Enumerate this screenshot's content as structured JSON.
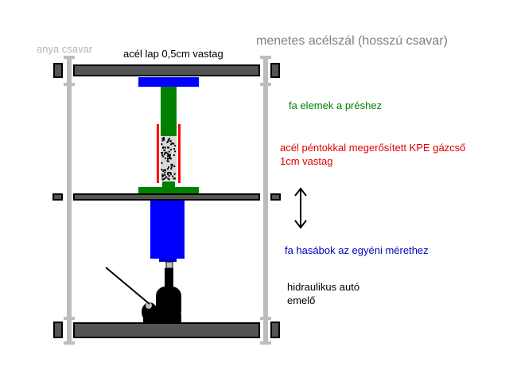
{
  "labels": {
    "nut": "anya csavar",
    "steel_plate": "acél lap 0,5cm vastag",
    "threaded_rod": "menetes acélszál  (hosszú csavar)",
    "wood_elements": "fa elemek a préshez",
    "pipe_line1": "acél péntokkal megerősített KPE gázcső",
    "pipe_line2": "1cm vastag",
    "wood_blocks": "fa hasábok az egyéni mérethez",
    "jack_line1": "hidraulikus autó",
    "jack_line2": "emelő"
  },
  "colors": {
    "nut_label": "#b4b4b4",
    "plate_label": "#000000",
    "rod_label": "#808080",
    "wood_label": "#008000",
    "pipe_label": "#e00000",
    "blocks_label": "#0000c0",
    "jack_label": "#000000",
    "plate_fill": "#545454",
    "rod_color": "#bdbdbd",
    "wood_fill": "#008000",
    "block_fill": "#0000ff",
    "pipe_color": "#ff0000"
  }
}
